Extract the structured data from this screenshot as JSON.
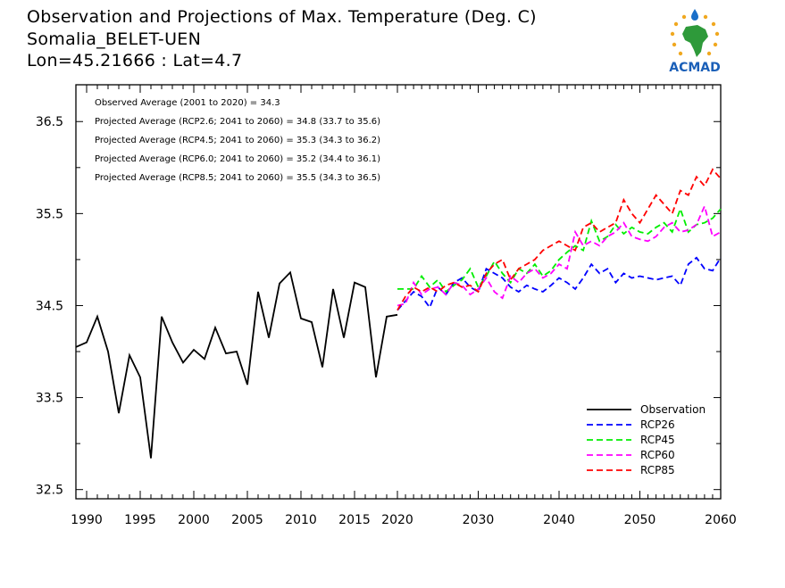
{
  "title_lines": [
    "Observation and Projections of Max. Temperature (Deg. C)",
    "Somalia_BELET-UEN",
    "Lon=45.21666 : Lat=4.7"
  ],
  "logo_text": "ACMAD",
  "colors": {
    "observation": "#000000",
    "rcp26": "#0000ff",
    "rcp45": "#00ee00",
    "rcp60": "#ff00ff",
    "rcp85": "#ff0000"
  },
  "chart_data": {
    "type": "line",
    "ylim": [
      32.4,
      36.9
    ],
    "yticks": [
      32.5,
      33.5,
      34.5,
      35.5,
      36.5
    ],
    "ytick_labels": [
      "32.5",
      "33.5",
      "34.5",
      "35.5",
      "36.5"
    ],
    "xticks_left": [
      1990,
      1995,
      2000,
      2005,
      2010,
      2015,
      2020
    ],
    "xticks_right": [
      2030,
      2040,
      2050,
      2060
    ],
    "annotations": [
      "Observed Average (2001 to 2020) = 34.3",
      "Projected Average (RCP2.6; 2041 to 2060) = 34.8 (33.7 to 35.6)",
      "Projected Average (RCP4.5; 2041 to 2060) = 35.3 (34.3 to 36.2)",
      "Projected Average (RCP6.0; 2041 to 2060) = 35.2 (34.4 to 36.1)",
      "Projected Average (RCP8.5; 2041 to 2060) = 35.5 (34.3 to 36.5)"
    ],
    "legend_position": "bottom-right",
    "observation": {
      "name": "Observation",
      "x": [
        1989,
        1990,
        1991,
        1992,
        1993,
        1994,
        1995,
        1996,
        1997,
        1998,
        1999,
        2000,
        2001,
        2002,
        2003,
        2004,
        2005,
        2006,
        2007,
        2008,
        2009,
        2010,
        2011,
        2012,
        2013,
        2014,
        2015,
        2016,
        2017,
        2018,
        2019
      ],
      "values": [
        34.05,
        34.1,
        34.38,
        34.0,
        33.33,
        33.96,
        33.72,
        32.84,
        34.38,
        34.1,
        33.88,
        34.02,
        33.92,
        34.26,
        33.98,
        34.0,
        33.64,
        34.65,
        34.15,
        34.74,
        34.86,
        34.36,
        34.32,
        33.83,
        34.68,
        34.15,
        34.75,
        34.7,
        33.72,
        34.38,
        34.4
      ]
    },
    "series": [
      {
        "name": "RCP26",
        "x": [
          2020,
          2021,
          2022,
          2023,
          2024,
          2025,
          2026,
          2027,
          2028,
          2029,
          2030,
          2031,
          2032,
          2033,
          2034,
          2035,
          2036,
          2037,
          2038,
          2039,
          2040,
          2041,
          2042,
          2043,
          2044,
          2045,
          2046,
          2047,
          2048,
          2049,
          2050,
          2051,
          2052,
          2053,
          2054,
          2055,
          2056,
          2057,
          2058,
          2059,
          2060
        ],
        "values": [
          34.45,
          34.55,
          34.65,
          34.6,
          34.48,
          34.7,
          34.62,
          34.75,
          34.8,
          34.7,
          34.65,
          34.9,
          34.85,
          34.8,
          34.7,
          34.65,
          34.72,
          34.68,
          34.65,
          34.72,
          34.8,
          34.75,
          34.68,
          34.8,
          34.95,
          34.85,
          34.9,
          34.75,
          34.85,
          34.8,
          34.82,
          34.8,
          34.78,
          34.8,
          34.82,
          34.72,
          34.95,
          35.02,
          34.9,
          34.88,
          35.02
        ]
      },
      {
        "name": "RCP45",
        "x": [
          2020,
          2021,
          2022,
          2023,
          2024,
          2025,
          2026,
          2027,
          2028,
          2029,
          2030,
          2031,
          2032,
          2033,
          2034,
          2035,
          2036,
          2037,
          2038,
          2039,
          2040,
          2041,
          2042,
          2043,
          2044,
          2045,
          2046,
          2047,
          2048,
          2049,
          2050,
          2051,
          2052,
          2053,
          2054,
          2055,
          2056,
          2057,
          2058,
          2059,
          2060
        ],
        "values": [
          34.68,
          34.68,
          34.68,
          34.82,
          34.7,
          34.78,
          34.65,
          34.72,
          34.78,
          34.9,
          34.7,
          34.82,
          34.98,
          34.85,
          34.75,
          34.9,
          34.85,
          34.95,
          34.82,
          34.88,
          35.0,
          35.08,
          35.15,
          35.1,
          35.42,
          35.2,
          35.25,
          35.38,
          35.28,
          35.35,
          35.3,
          35.28,
          35.35,
          35.4,
          35.3,
          35.55,
          35.3,
          35.38,
          35.4,
          35.45,
          35.55
        ]
      },
      {
        "name": "RCP60",
        "x": [
          2020,
          2021,
          2022,
          2023,
          2024,
          2025,
          2026,
          2027,
          2028,
          2029,
          2030,
          2031,
          2032,
          2033,
          2034,
          2035,
          2036,
          2037,
          2038,
          2039,
          2040,
          2041,
          2042,
          2043,
          2044,
          2045,
          2046,
          2047,
          2048,
          2049,
          2050,
          2051,
          2052,
          2053,
          2054,
          2055,
          2056,
          2057,
          2058,
          2059,
          2060
        ],
        "values": [
          34.5,
          34.52,
          34.75,
          34.62,
          34.68,
          34.7,
          34.62,
          34.75,
          34.72,
          34.62,
          34.68,
          34.8,
          34.65,
          34.58,
          34.82,
          34.75,
          34.85,
          34.9,
          34.8,
          34.85,
          34.95,
          34.9,
          35.3,
          35.15,
          35.2,
          35.15,
          35.25,
          35.3,
          35.4,
          35.25,
          35.22,
          35.2,
          35.25,
          35.35,
          35.4,
          35.3,
          35.32,
          35.38,
          35.58,
          35.25,
          35.3
        ]
      },
      {
        "name": "RCP85",
        "x": [
          2020,
          2021,
          2022,
          2023,
          2024,
          2025,
          2026,
          2027,
          2028,
          2029,
          2030,
          2031,
          2032,
          2033,
          2034,
          2035,
          2036,
          2037,
          2038,
          2039,
          2040,
          2041,
          2042,
          2043,
          2044,
          2045,
          2046,
          2047,
          2048,
          2049,
          2050,
          2051,
          2052,
          2053,
          2054,
          2055,
          2056,
          2057,
          2058,
          2059,
          2060
        ],
        "values": [
          34.45,
          34.6,
          34.7,
          34.65,
          34.7,
          34.65,
          34.72,
          34.75,
          34.7,
          34.72,
          34.65,
          34.85,
          34.95,
          35.0,
          34.78,
          34.9,
          34.95,
          35.0,
          35.1,
          35.15,
          35.2,
          35.15,
          35.1,
          35.35,
          35.4,
          35.3,
          35.35,
          35.4,
          35.65,
          35.5,
          35.4,
          35.55,
          35.7,
          35.6,
          35.5,
          35.75,
          35.7,
          35.9,
          35.8,
          35.98,
          35.88
        ]
      }
    ]
  }
}
